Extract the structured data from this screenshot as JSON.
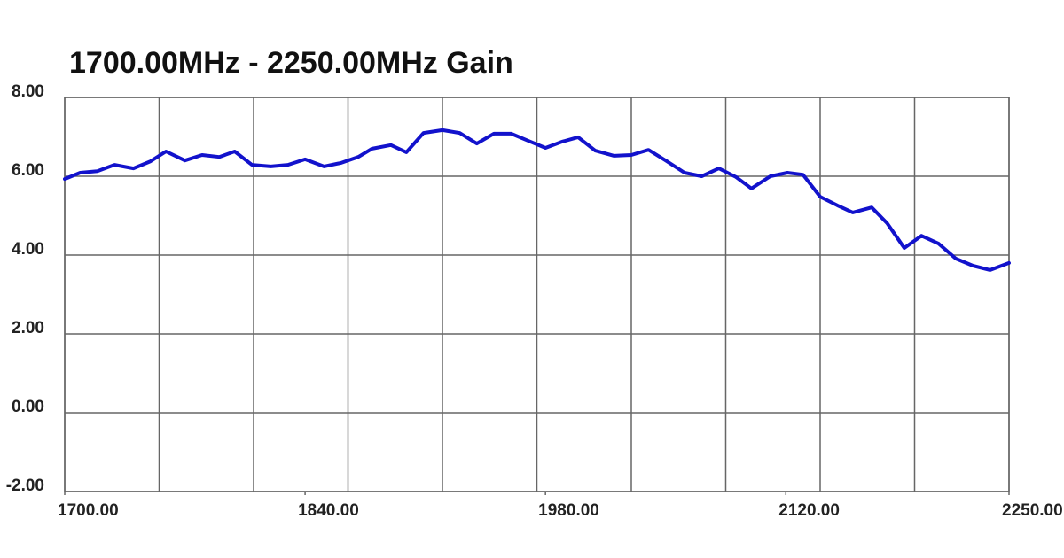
{
  "chart_data": {
    "type": "line",
    "title": "1700.00MHz - 2250.00MHz Gain",
    "xlim": [
      1700,
      2250
    ],
    "ylim": [
      -2,
      8
    ],
    "xticks": [
      {
        "value": 1700,
        "label": "1700.00"
      },
      {
        "value": 1840,
        "label": "1840.00"
      },
      {
        "value": 1980,
        "label": "1980.00"
      },
      {
        "value": 2120,
        "label": "2120.00"
      },
      {
        "value": 2250,
        "label": "2250.00"
      }
    ],
    "xgrid": [
      1700,
      1755,
      1810,
      1865,
      1920,
      1975,
      2030,
      2085,
      2140,
      2195,
      2250
    ],
    "yticks": [
      {
        "value": 8,
        "label": "8.00"
      },
      {
        "value": 6,
        "label": "6.00"
      },
      {
        "value": 4,
        "label": "4.00"
      },
      {
        "value": 2,
        "label": "2.00"
      },
      {
        "value": 0,
        "label": "0.00"
      },
      {
        "value": -2,
        "label": "-2.00"
      }
    ],
    "grid": true,
    "x": [
      1700,
      1709,
      1719,
      1729,
      1740,
      1750,
      1759,
      1770,
      1780,
      1790,
      1799,
      1809,
      1820,
      1830,
      1840,
      1851,
      1861,
      1871,
      1879,
      1890,
      1899,
      1909,
      1920,
      1930,
      1940,
      1950,
      1960,
      1971,
      1980,
      1990,
      1999,
      2009,
      2020,
      2030,
      2040,
      2050,
      2061,
      2071,
      2081,
      2091,
      2100,
      2111,
      2121,
      2130,
      2140,
      2150,
      2159,
      2170,
      2179,
      2189,
      2199,
      2209,
      2219,
      2229,
      2239,
      2250
    ],
    "series": [
      {
        "color": "#1212cc",
        "values": [
          5.93,
          6.09,
          6.13,
          6.29,
          6.2,
          6.38,
          6.63,
          6.4,
          6.54,
          6.49,
          6.63,
          6.29,
          6.25,
          6.29,
          6.43,
          6.25,
          6.34,
          6.49,
          6.7,
          6.79,
          6.61,
          7.1,
          7.17,
          7.1,
          6.83,
          7.08,
          7.08,
          6.88,
          6.72,
          6.88,
          6.99,
          6.65,
          6.52,
          6.54,
          6.67,
          6.4,
          6.09,
          6.0,
          6.2,
          5.98,
          5.69,
          6.0,
          6.09,
          6.04,
          5.48,
          5.26,
          5.08,
          5.21,
          4.81,
          4.18,
          4.49,
          4.29,
          3.91,
          3.73,
          3.62,
          3.8
        ]
      }
    ]
  }
}
